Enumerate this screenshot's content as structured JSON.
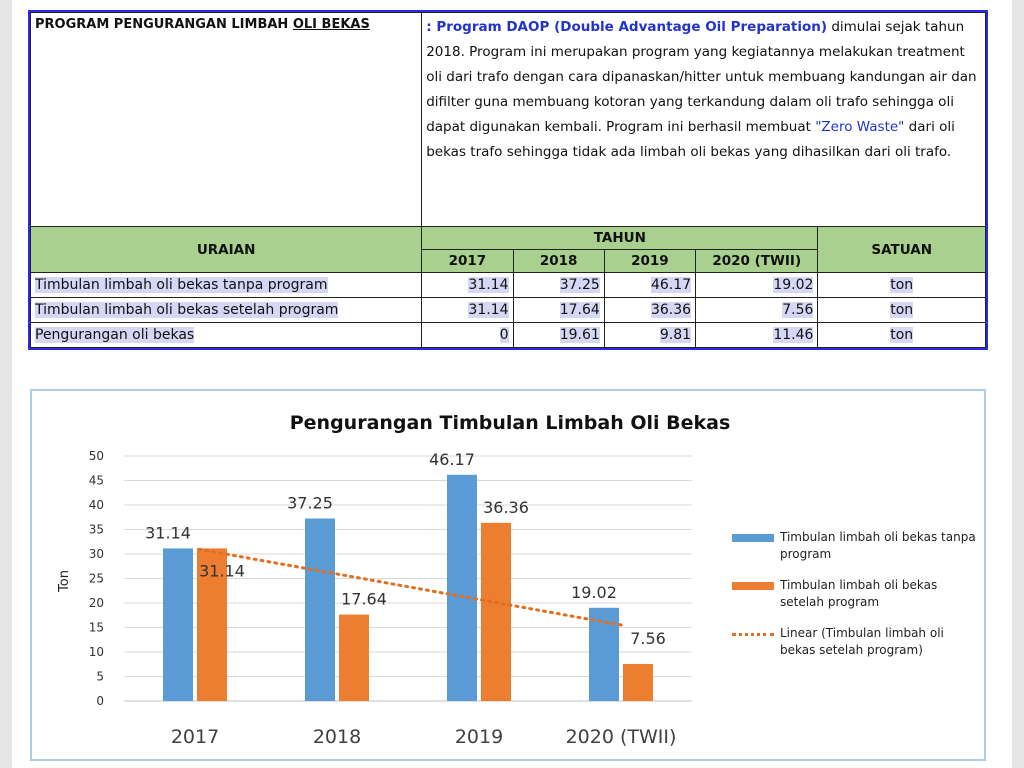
{
  "table": {
    "title_prefix": "PROGRAM PENGURANGAN LIMBAH ",
    "title_underlined": "OLI BEKAS",
    "desc_colon": ": ",
    "desc_program": "Program DAOP (Double Advantage Oil Preparation)",
    "desc_part1": " dimulai sejak tahun 2018. Program ini merupakan program yang kegiatannya melakukan treatment oli dari trafo dengan cara dipanaskan/hitter untuk membuang kandungan air dan difilter guna membuang kotoran yang terkandung dalam oli trafo sehingga oli dapat digunakan kembali. Program ini berhasil membuat ",
    "desc_zero_waste": "\"Zero Waste\"",
    "desc_part2": " dari oli bekas trafo sehingga tidak ada limbah oli bekas yang dihasilkan dari oli trafo.",
    "header_uraian": "URAIAN",
    "header_tahun": "TAHUN",
    "header_satuan": "SATUAN",
    "years": [
      "2017",
      "2018",
      "2019",
      "2020 (TWII)"
    ],
    "rows": [
      {
        "label": "Timbulan limbah oli bekas tanpa program",
        "values": [
          "31.14",
          "37.25",
          "46.17",
          "19.02"
        ],
        "unit": "ton"
      },
      {
        "label": "Timbulan limbah oli bekas setelah program",
        "values": [
          "31.14",
          "17.64",
          "36.36",
          "7.56"
        ],
        "unit": "ton"
      },
      {
        "label": "Pengurangan oli bekas",
        "values": [
          "0",
          "19.61",
          "9.81",
          "11.46"
        ],
        "unit": "ton"
      }
    ]
  },
  "chart_data": {
    "type": "bar",
    "title": "Pengurangan Timbulan Limbah Oli Bekas",
    "ylabel": "Ton",
    "xlabel": "",
    "categories": [
      "2017",
      "2018",
      "2019",
      "2020 (TWII)"
    ],
    "ylim": [
      0,
      50
    ],
    "yticks": [
      0,
      5,
      10,
      15,
      20,
      25,
      30,
      35,
      40,
      45,
      50
    ],
    "grid": true,
    "legend_position": "right",
    "series": [
      {
        "name": "Timbulan limbah oli bekas tanpa program",
        "values": [
          31.14,
          37.25,
          46.17,
          19.02
        ],
        "labels": [
          "31.14",
          "37.25",
          "46.17",
          "19.02"
        ],
        "color": "#5b9bd5"
      },
      {
        "name": "Timbulan limbah oli bekas setelah program",
        "values": [
          31.14,
          17.64,
          36.36,
          7.56
        ],
        "labels": [
          "31.14",
          "17.64",
          "36.36",
          "7.56"
        ],
        "color": "#ed7d31"
      }
    ],
    "trendline": {
      "name": "Linear (Timbulan limbah oli bekas setelah program)",
      "of_series": 1,
      "color": "#e07020"
    }
  }
}
